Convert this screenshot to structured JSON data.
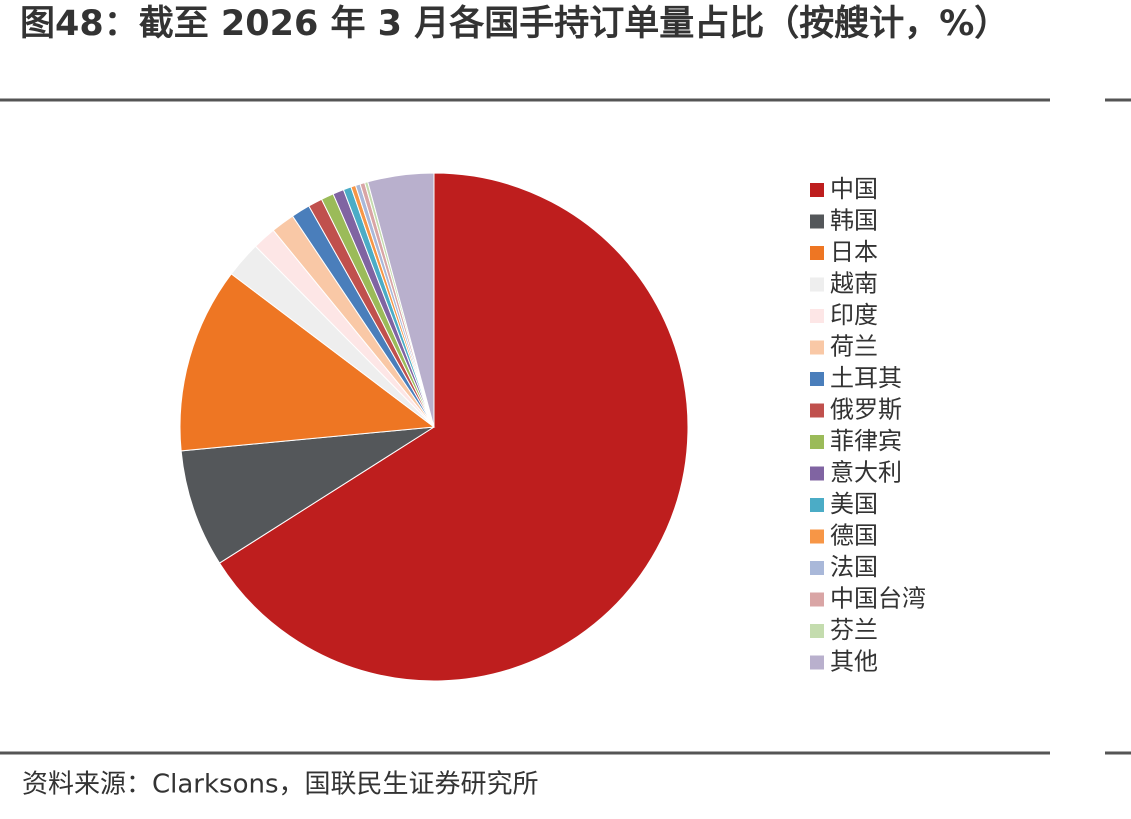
{
  "chart_data": {
    "type": "pie",
    "title": "图48：截至 2026 年 3 月各国手持订单量占比（按艘计，%）",
    "source": "资料来源：Clarksons，国联民生证券研究所",
    "categories": [
      "中国",
      "韩国",
      "日本",
      "越南",
      "印度",
      "荷兰",
      "土耳其",
      "俄罗斯",
      "菲律宾",
      "意大利",
      "美国",
      "德国",
      "法国",
      "中国台湾",
      "芬兰",
      "其他"
    ],
    "values": [
      66,
      7.5,
      11.8,
      2.3,
      1.5,
      1.5,
      1.2,
      0.9,
      0.8,
      0.7,
      0.5,
      0.3,
      0.3,
      0.3,
      0.2,
      4.2
    ],
    "colors": [
      "#be1e1e",
      "#54575a",
      "#ee7623",
      "#eeeeee",
      "#fde6e6",
      "#f9c8a6",
      "#4a7ebb",
      "#c0504d",
      "#9bbb59",
      "#8064a2",
      "#4bacc6",
      "#f79646",
      "#a9b8d9",
      "#d9a5a5",
      "#c4dcae",
      "#b9b0cd"
    ]
  }
}
